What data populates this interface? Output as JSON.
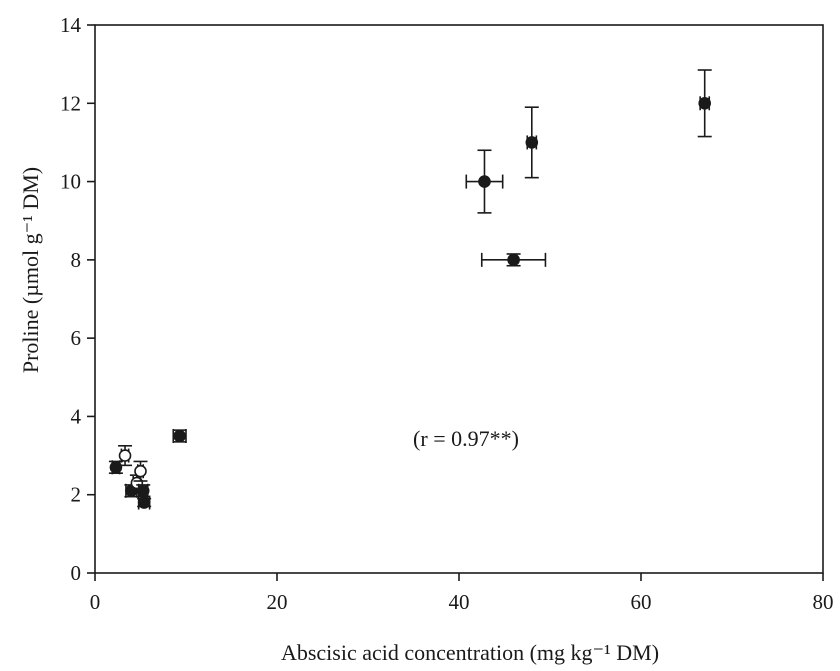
{
  "chart_data": {
    "type": "scatter",
    "title": "",
    "xlabel": "Abscisic acid concentration (mg kg⁻¹ DM)",
    "ylabel": "Proline (µmol g⁻¹ DM)",
    "xlim": [
      0,
      80
    ],
    "ylim": [
      0,
      14
    ],
    "x_ticks": [
      0,
      20,
      40,
      60,
      80
    ],
    "y_ticks": [
      0,
      2,
      4,
      6,
      8,
      10,
      12,
      14
    ],
    "grid": false,
    "legend": "none",
    "annotation": "(r = 0.97**)",
    "point_color": "#1a1a1a",
    "points": [
      {
        "x": 2.3,
        "y": 2.7,
        "xerr": 0.4,
        "yerr": 0.15,
        "marker": "filled"
      },
      {
        "x": 3.3,
        "y": 3.0,
        "xerr": 0.4,
        "yerr": 0.25,
        "marker": "open"
      },
      {
        "x": 4.0,
        "y": 2.1,
        "xerr": 0.6,
        "yerr": 0.15,
        "marker": "filled"
      },
      {
        "x": 4.6,
        "y": 2.3,
        "xerr": 0.4,
        "yerr": 0.2,
        "marker": "open"
      },
      {
        "x": 5.0,
        "y": 2.6,
        "xerr": 0.3,
        "yerr": 0.25,
        "marker": "open"
      },
      {
        "x": 5.3,
        "y": 2.1,
        "xerr": 0.5,
        "yerr": 0.15,
        "marker": "filled"
      },
      {
        "x": 5.4,
        "y": 1.8,
        "xerr": 0.6,
        "yerr": 0.1,
        "marker": "filled"
      },
      {
        "x": 9.3,
        "y": 3.5,
        "xerr": 0.7,
        "yerr": 0.15,
        "marker": "filled"
      },
      {
        "x": 42.8,
        "y": 10.0,
        "xerr": 2.0,
        "yerr": 0.8,
        "marker": "filled"
      },
      {
        "x": 46.0,
        "y": 8.0,
        "xerr": 3.5,
        "yerr": 0.15,
        "marker": "filled"
      },
      {
        "x": 48.0,
        "y": 11.0,
        "xerr": 0.5,
        "yerr": 0.9,
        "marker": "filled"
      },
      {
        "x": 67.0,
        "y": 12.0,
        "xerr": 0.5,
        "yerr": 0.85,
        "marker": "filled"
      }
    ]
  }
}
